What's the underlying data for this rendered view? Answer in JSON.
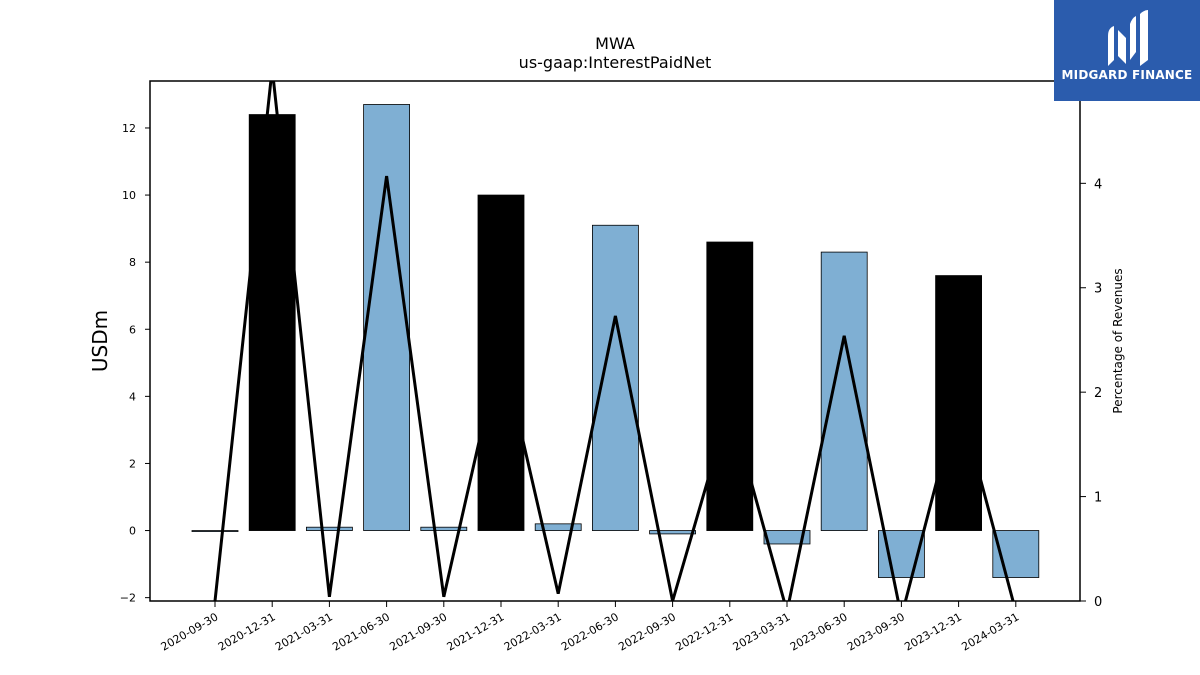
{
  "brand": {
    "name": "MIDGARD FINANCE",
    "logo_icon": "midgard-m-logo-icon",
    "color": "#2b5cad"
  },
  "chart_data": {
    "type": "bar",
    "title": "MWA",
    "subtitle": "us-gaap:InterestPaidNet",
    "ylabel": "USDm",
    "y2label": "Percentage of Revenues",
    "ylim": [
      -2.1,
      13.4
    ],
    "y2lim": [
      0,
      4.98
    ],
    "yticks": [
      -2,
      0,
      2,
      4,
      6,
      8,
      10,
      12
    ],
    "y2ticks": [
      0,
      1,
      2,
      3,
      4
    ],
    "categories": [
      "2020-09-30",
      "2020-12-31",
      "2021-03-31",
      "2021-06-30",
      "2021-09-30",
      "2021-12-31",
      "2022-03-31",
      "2022-06-30",
      "2022-09-30",
      "2022-12-31",
      "2023-03-31",
      "2023-06-30",
      "2023-09-30",
      "2023-12-31",
      "2024-03-31"
    ],
    "series": [
      {
        "kind": "bar",
        "values": [
          0.0,
          12.4,
          0.1,
          12.7,
          0.1,
          10.0,
          0.2,
          9.1,
          -0.1,
          8.6,
          -0.4,
          8.3,
          -1.4,
          7.6,
          -1.4
        ],
        "colors": [
          "#7fafd3",
          "#000000",
          "#7fafd3",
          "#7fafd3",
          "#7fafd3",
          "#000000",
          "#7fafd3",
          "#7fafd3",
          "#7fafd3",
          "#000000",
          "#7fafd3",
          "#7fafd3",
          "#7fafd3",
          "#000000",
          "#7fafd3"
        ]
      },
      {
        "kind": "line",
        "axis": "right",
        "color": "#000000",
        "values": [
          0.0,
          5.1,
          0.04,
          4.07,
          0.04,
          2.45,
          0.07,
          2.73,
          0.0,
          1.88,
          -0.1,
          2.54,
          -0.15,
          1.95,
          -0.1
        ]
      }
    ]
  }
}
